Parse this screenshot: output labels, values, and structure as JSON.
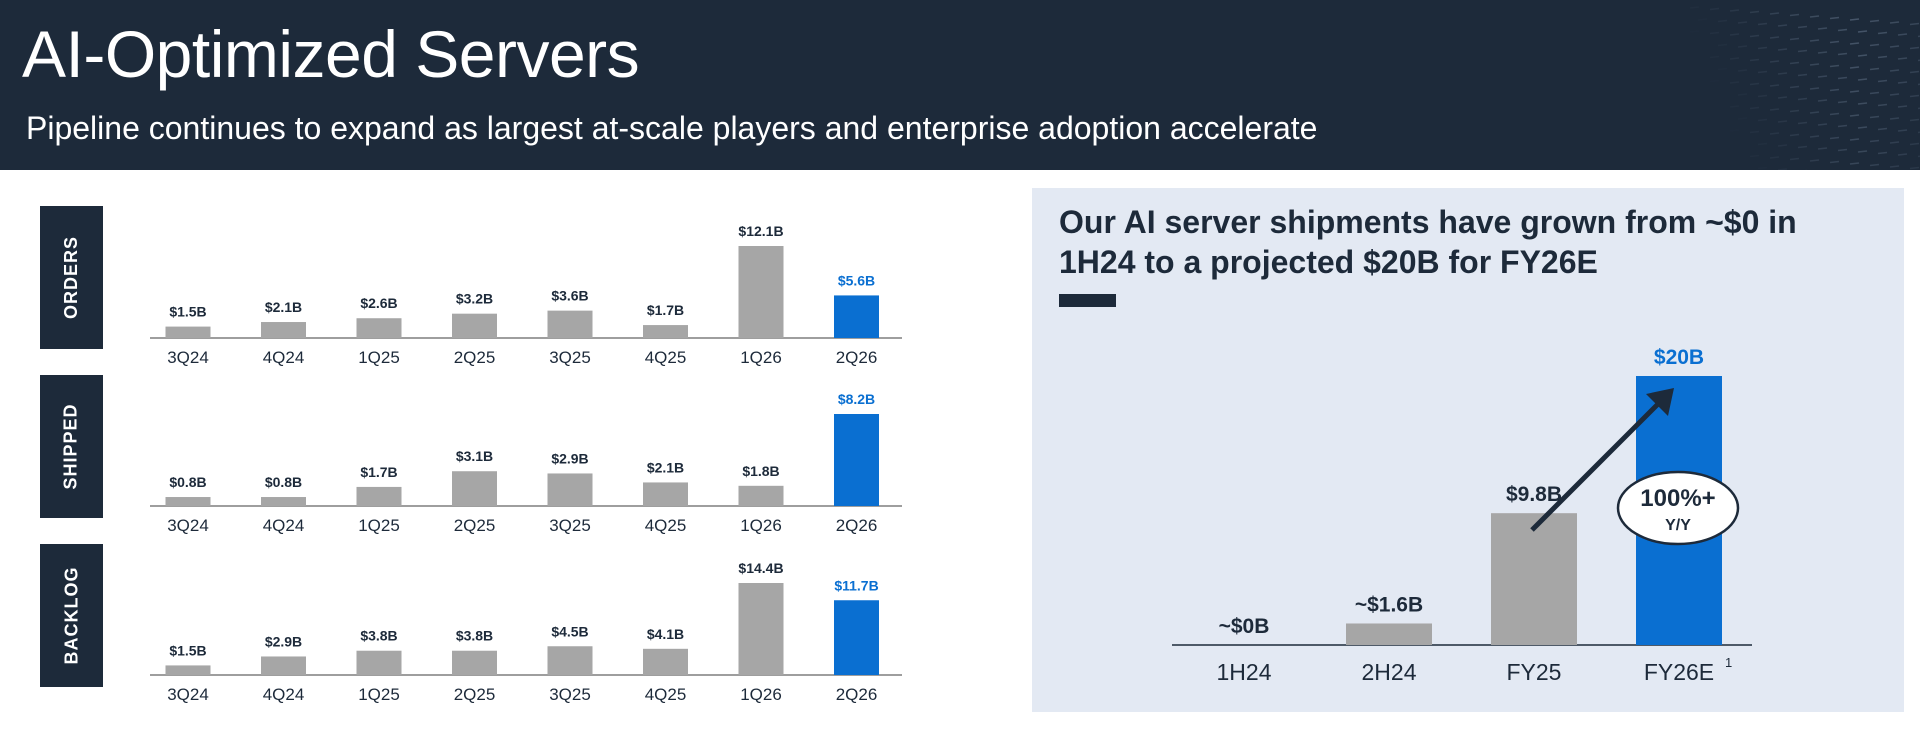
{
  "header": {
    "title": "AI-Optimized Servers",
    "subtitle": "Pipeline continues to expand as largest at-scale players and enterprise adoption accelerate"
  },
  "colors": {
    "navy": "#1d2a3a",
    "gray_bar": "#a6a6a6",
    "blue_bar": "#0a6fd1",
    "panel_bg": "#e3e9f3"
  },
  "right_panel": {
    "heading": "Our AI server shipments have grown from ~$0 in 1H24 to a projected $20B for FY26E",
    "callout": {
      "line1": "100%+",
      "line2": "Y/Y"
    },
    "footnote_mark": "1"
  },
  "chart_data": [
    {
      "type": "bar",
      "title": "ORDERS",
      "categories": [
        "3Q24",
        "4Q24",
        "1Q25",
        "2Q25",
        "3Q25",
        "4Q25",
        "1Q26",
        "2Q26"
      ],
      "values": [
        1.5,
        2.1,
        2.6,
        3.2,
        3.6,
        1.7,
        12.1,
        5.6
      ],
      "labels": [
        "$1.5B",
        "$2.1B",
        "$2.6B",
        "$3.2B",
        "$3.6B",
        "$1.7B",
        "$12.1B",
        "$5.6B"
      ],
      "highlight_index": 7,
      "ylim": [
        0,
        12.1
      ]
    },
    {
      "type": "bar",
      "title": "SHIPPED",
      "categories": [
        "3Q24",
        "4Q24",
        "1Q25",
        "2Q25",
        "3Q25",
        "4Q25",
        "1Q26",
        "2Q26"
      ],
      "values": [
        0.8,
        0.8,
        1.7,
        3.1,
        2.9,
        2.1,
        1.8,
        8.2
      ],
      "labels": [
        "$0.8B",
        "$0.8B",
        "$1.7B",
        "$3.1B",
        "$2.9B",
        "$2.1B",
        "$1.8B",
        "$8.2B"
      ],
      "highlight_index": 7,
      "ylim": [
        0,
        8.2
      ]
    },
    {
      "type": "bar",
      "title": "BACKLOG",
      "categories": [
        "3Q24",
        "4Q24",
        "1Q25",
        "2Q25",
        "3Q25",
        "4Q25",
        "1Q26",
        "2Q26"
      ],
      "values": [
        1.5,
        2.9,
        3.8,
        3.8,
        4.5,
        4.1,
        14.4,
        11.7
      ],
      "labels": [
        "$1.5B",
        "$2.9B",
        "$3.8B",
        "$3.8B",
        "$4.5B",
        "$4.1B",
        "$14.4B",
        "$11.7B"
      ],
      "highlight_index": 7,
      "ylim": [
        0,
        14.4
      ]
    },
    {
      "type": "bar",
      "title": "AI server shipments",
      "categories": [
        "1H24",
        "2H24",
        "FY25",
        "FY26E"
      ],
      "values": [
        0,
        1.6,
        9.8,
        20
      ],
      "labels": [
        "~$0B",
        "~$1.6B",
        "$9.8B",
        "$20B"
      ],
      "highlight_index": 3,
      "ylim": [
        0,
        20
      ]
    }
  ]
}
